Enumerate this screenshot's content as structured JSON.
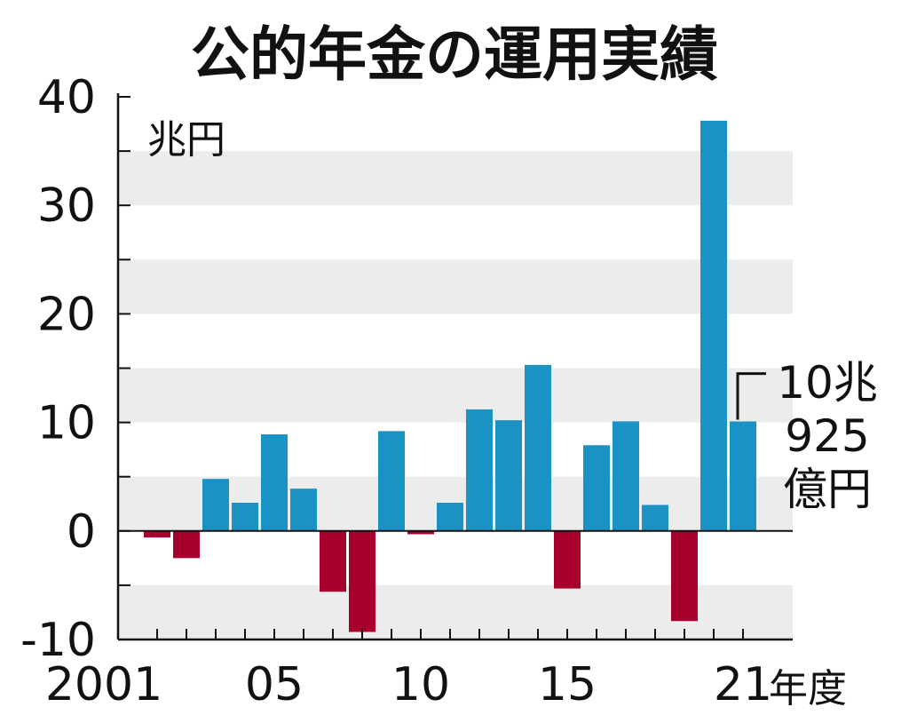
{
  "chart_data": {
    "type": "bar",
    "title": "公的年金の運用実績",
    "unit_label": "兆円",
    "x_suffix": "年度",
    "ylim": [
      -10,
      40
    ],
    "yticks": [
      "40",
      "30",
      "20",
      "10",
      "0",
      "-10"
    ],
    "ytick_values": [
      40,
      30,
      20,
      10,
      0,
      -10
    ],
    "grid": "alternating horizontal bands",
    "colors": {
      "positive": "#1a93c4",
      "negative": "#a8002e",
      "band": "#ececec"
    },
    "x_tick_labels": [
      {
        "fiscal_year": 2001,
        "label": "2001"
      },
      {
        "fiscal_year": 2005,
        "label": "05"
      },
      {
        "fiscal_year": 2010,
        "label": "10"
      },
      {
        "fiscal_year": 2015,
        "label": "15"
      },
      {
        "fiscal_year": 2021,
        "label": "21"
      }
    ],
    "x": [
      2001,
      2002,
      2003,
      2004,
      2005,
      2006,
      2007,
      2008,
      2009,
      2010,
      2011,
      2012,
      2013,
      2014,
      2015,
      2016,
      2017,
      2018,
      2019,
      2020,
      2021
    ],
    "values": [
      -0.6,
      -2.5,
      4.8,
      2.6,
      8.9,
      3.9,
      -5.6,
      -9.3,
      9.2,
      -0.3,
      2.6,
      11.2,
      10.2,
      15.3,
      -5.3,
      7.9,
      10.1,
      2.4,
      -8.3,
      37.8,
      10.0925
    ],
    "annotation": {
      "fiscal_year": 2021,
      "lines": [
        "10兆",
        "925",
        "億円"
      ]
    }
  }
}
